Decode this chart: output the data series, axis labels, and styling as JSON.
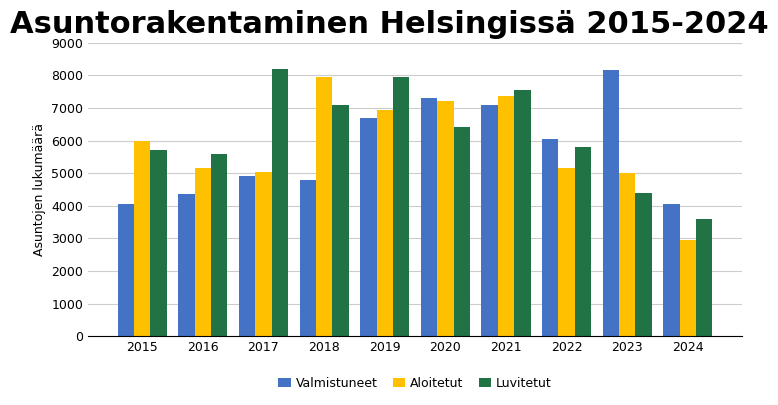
{
  "title": "Asuntorakentaminen Helsingissä 2015-2024",
  "years": [
    2015,
    2016,
    2017,
    2018,
    2019,
    2020,
    2021,
    2022,
    2023,
    2024
  ],
  "valmistuneet": [
    4050,
    4350,
    4900,
    4800,
    6700,
    7300,
    7100,
    6050,
    8150,
    4050
  ],
  "aloitetut": [
    6000,
    5150,
    5050,
    7950,
    6950,
    7200,
    7350,
    5150,
    5000,
    2950
  ],
  "luvitetut": [
    5700,
    5600,
    8200,
    7100,
    7950,
    6400,
    7550,
    5800,
    4400,
    3600
  ],
  "colors": {
    "valmistuneet": "#4472C4",
    "aloitetut": "#FFC000",
    "luvitetut": "#217346"
  },
  "ylabel": "Asuntojen lukumäärä",
  "ylim": [
    0,
    9000
  ],
  "yticks": [
    0,
    1000,
    2000,
    3000,
    4000,
    5000,
    6000,
    7000,
    8000,
    9000
  ],
  "legend_labels": [
    "Valmistuneet",
    "Aloitetut",
    "Luvitetut"
  ],
  "background_color": "#FFFFFF",
  "grid_color": "#CCCCCC",
  "title_fontsize": 22,
  "axis_fontsize": 9,
  "legend_fontsize": 9,
  "bar_width": 0.27
}
